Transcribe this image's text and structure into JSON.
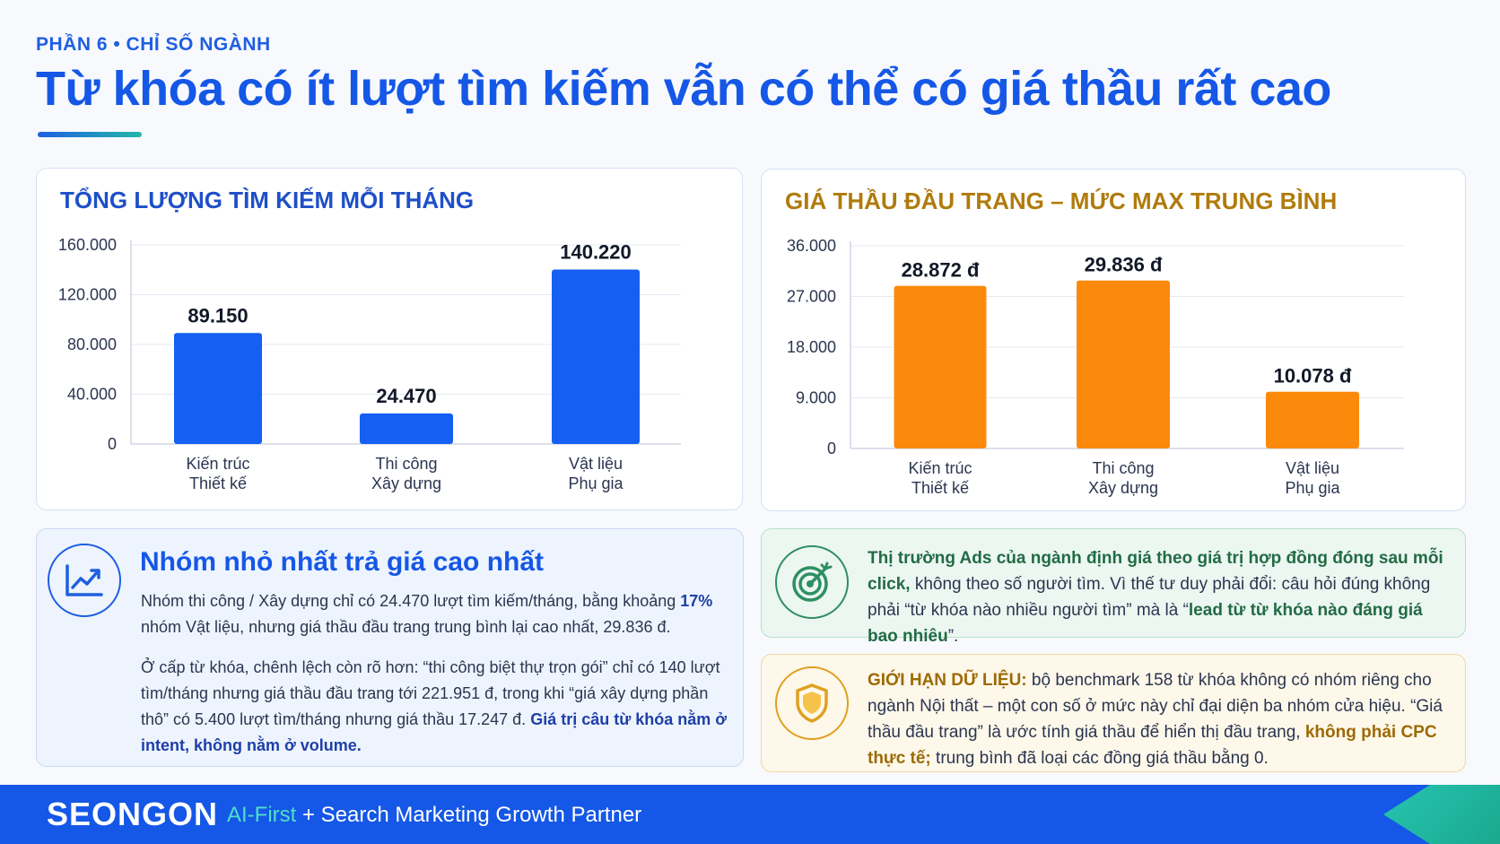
{
  "header": {
    "kicker": "PHẦN 6 • CHỈ SỐ NGÀNH",
    "title": "Từ khóa có ít lượt tìm kiếm vẫn có thể có giá thầu rất cao"
  },
  "colors": {
    "primary": "#1557e6",
    "bar_blue": "#1560f2",
    "bar_orange": "#fb8a0c",
    "teal": "#26c4b0"
  },
  "chart_data": [
    {
      "type": "bar",
      "title": "TỔNG LƯỢNG TÌM KIẾM MỖI THÁNG",
      "categories": [
        [
          "Kiến trúc",
          "Thiết kế"
        ],
        [
          "Thi công",
          "Xây dựng"
        ],
        [
          "Vật liệu",
          "Phụ gia"
        ]
      ],
      "values": [
        89150,
        24470,
        140220
      ],
      "value_labels": [
        "89.150",
        "24.470",
        "140.220"
      ],
      "yticks": [
        0,
        40000,
        80000,
        120000,
        160000
      ],
      "ytick_labels": [
        "0",
        "40.000",
        "80.000",
        "120.000",
        "160.000"
      ],
      "ylim": [
        0,
        160000
      ],
      "color": "#1560f2",
      "grid": true
    },
    {
      "type": "bar",
      "title": "GIÁ THẦU ĐẦU TRANG – MỨC MAX TRUNG BÌNH",
      "categories": [
        [
          "Kiến trúc",
          "Thiết kế"
        ],
        [
          "Thi công",
          "Xây dựng"
        ],
        [
          "Vật liệu",
          "Phụ gia"
        ]
      ],
      "values": [
        28872,
        29836,
        10078
      ],
      "value_labels": [
        "28.872 đ",
        "29.836 đ",
        "10.078 đ"
      ],
      "yticks": [
        0,
        9000,
        18000,
        27000,
        36000
      ],
      "ytick_labels": [
        "0",
        "9.000",
        "18.000",
        "27.000",
        "36.000"
      ],
      "ylim": [
        0,
        36000
      ],
      "color": "#fb8a0c",
      "grid": true
    }
  ],
  "insight": {
    "icon": "trend-chart-icon",
    "heading": "Nhóm nhỏ nhất trả giá cao nhất",
    "p1_a": "Nhóm thi công / Xây dựng chỉ có 24.470 lượt tìm kiếm/tháng, bằng khoảng ",
    "p1_b": "17%",
    "p1_c": " nhóm Vật liệu, nhưng giá thầu đầu trang trung bình lại cao nhất, 29.836 đ.",
    "p2_a": "Ở cấp từ khóa, chênh lệch còn rõ hơn: “thi công biệt thự trọn gói” chỉ có 140 lượt tìm/tháng nhưng giá thầu đầu trang tới 221.951 đ, trong khi “giá xây dựng phần thô” có 5.400 lượt tìm/tháng nhưng giá thầu 17.247 đ. ",
    "p2_b": "Giá trị câu từ khóa nằm ở intent, không nằm ở volume."
  },
  "market_note": {
    "icon": "target-icon",
    "a": "Thị trường Ads của ngành định giá theo giá trị hợp đồng đóng sau mỗi click,",
    "b": " không theo số người tìm. Vì thế tư duy phải đổi: câu hỏi đúng không phải “từ khóa nào nhiều người tìm” mà là “",
    "c": "lead từ từ khóa nào đáng giá bao nhiêu",
    "d": "”."
  },
  "data_limit": {
    "icon": "shield-icon",
    "a": "GIỚI HẠN DỮ LIỆU:",
    "b": " bộ benchmark 158 từ khóa không có nhóm riêng cho ngành Nội thất – một con số ở mức này chỉ đại diện ba nhóm cửa hiệu. “Giá thầu đầu trang” là ước tính giá thầu để hiển thị đầu trang, ",
    "c": "không phải CPC thực tế;",
    "d": " trung bình đã loại các đồng giá thầu bằng 0."
  },
  "footer": {
    "brand": "SEONGON",
    "tag_accent": "AI-First",
    "tag_rest": " + Search Marketing Growth Partner"
  }
}
